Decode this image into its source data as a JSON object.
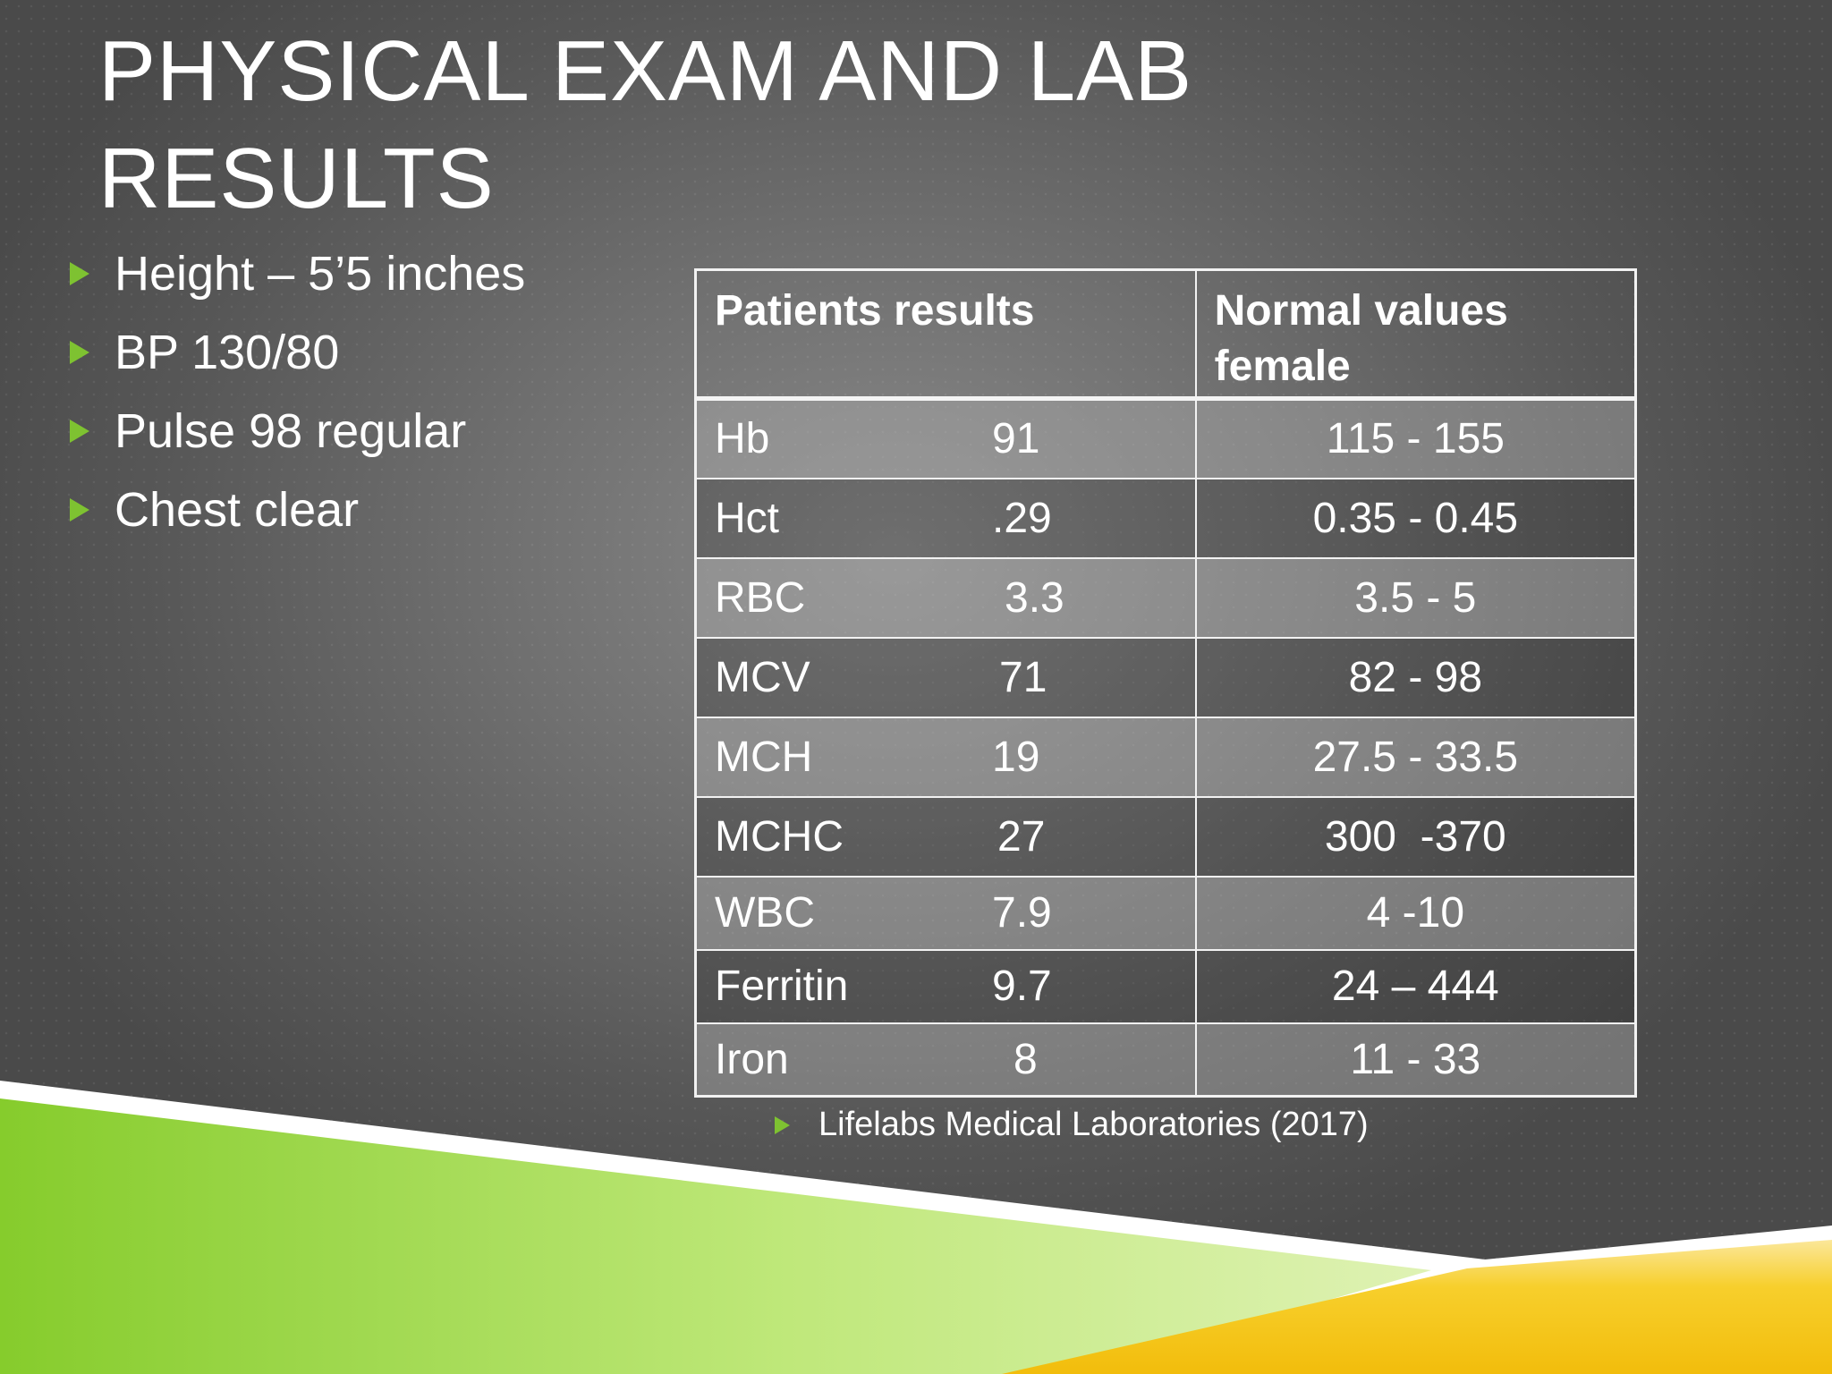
{
  "slide": {
    "title": "PHYSICAL EXAM AND LAB RESULTS",
    "bullets": [
      "Height – 5’5 inches",
      "BP 130/80",
      "Pulse 98 regular",
      "Chest clear"
    ],
    "table": {
      "headers": [
        "Patients results",
        "Normal values female"
      ],
      "rows": [
        {
          "test": "Hb",
          "value": "91",
          "normal": "115 - 155"
        },
        {
          "test": "Hct",
          "value": ".29",
          "normal": "0.35 - 0.45"
        },
        {
          "test": "RBC",
          "value": "3.3",
          "normal": "3.5 - 5"
        },
        {
          "test": "MCV",
          "value": "71",
          "normal": "82 - 98"
        },
        {
          "test": "MCH",
          "value": "19",
          "normal": "27.5 - 33.5"
        },
        {
          "test": "MCHC",
          "value": "27",
          "normal": "300  -370"
        },
        {
          "test": "WBC",
          "value": "7.9",
          "normal": "4 -10"
        },
        {
          "test": "Ferritin",
          "value": "9.7",
          "normal": "24 – 444"
        },
        {
          "test": "Iron",
          "value": "8",
          "normal": "11 - 33"
        }
      ]
    },
    "reference": "Lifelabs Medical Laboratories (2017)"
  },
  "colors": {
    "bullet_accent": "#7ec231",
    "green_band": "#8fd13a",
    "yellow_band": "#f5c518",
    "background": "#6e6e6e"
  }
}
